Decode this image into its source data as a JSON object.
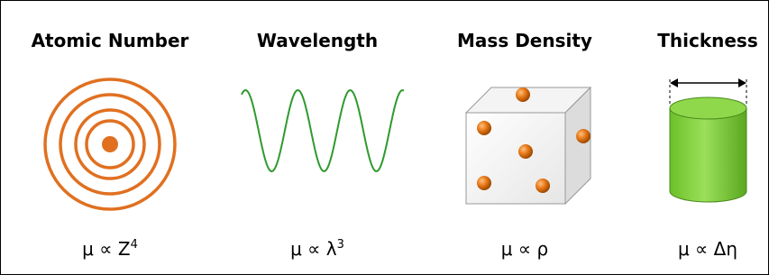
{
  "panels": [
    {
      "title": "Atomic Number",
      "formula": {
        "base": "μ ∝ Z",
        "sup": "4"
      }
    },
    {
      "title": "Wavelength",
      "formula": {
        "base": "μ ∝ λ",
        "sup": "3"
      }
    },
    {
      "title": "Mass Density",
      "formula": {
        "base": "μ ∝ ρ"
      }
    },
    {
      "title": "Thickness",
      "formula": {
        "base": "μ ∝ Δη"
      }
    }
  ]
}
